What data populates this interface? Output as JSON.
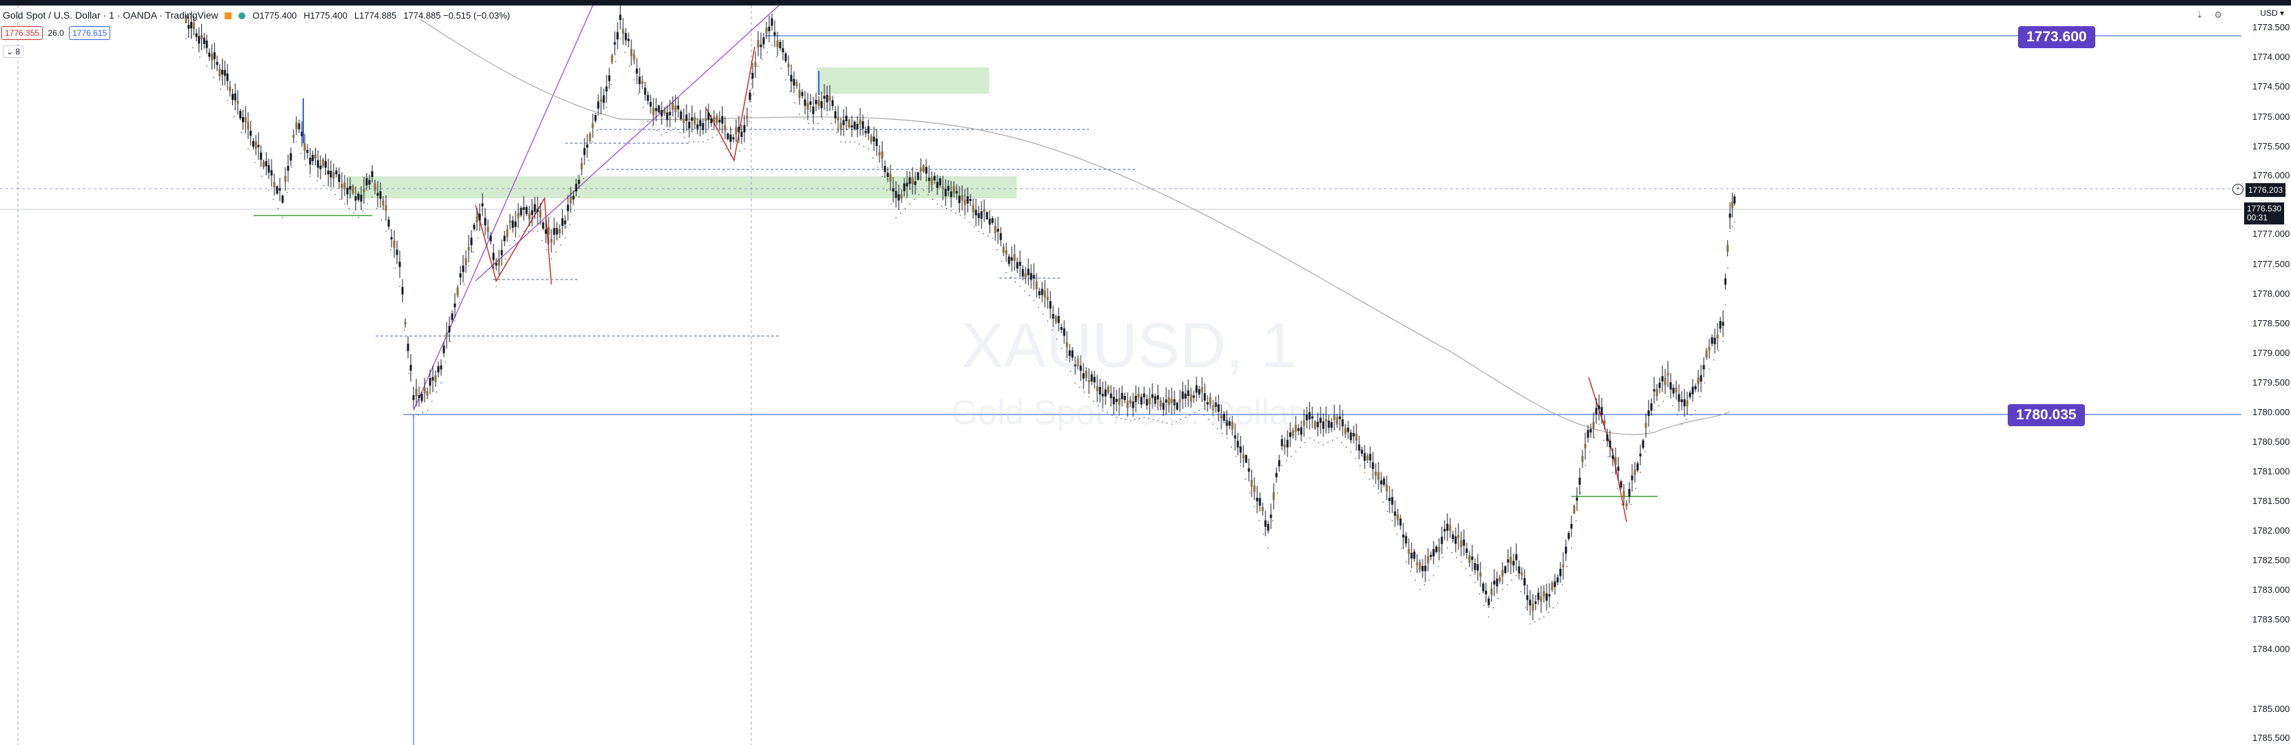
{
  "legend": {
    "symbol": "Gold Spot / U.S. Dollar · 1 · OANDA · TradingView",
    "open_label": "O1775.400",
    "high_label": "H1775.400",
    "low_label": "L1774.885",
    "close_change": "1774.885 −0.515 (−0.03%)",
    "bid": "1776.355",
    "spread": "26.0",
    "ask": "1776.615",
    "indicator_count": "8"
  },
  "watermark": {
    "title": "XAUUSD, 1",
    "subtitle": "Gold Spot / U.S. Dollar"
  },
  "labels": {
    "upper": "1773.600",
    "lower": "1780.035"
  },
  "axis": {
    "currency": "USD",
    "ticks": [
      "1773.500",
      "1774.000",
      "1774.500",
      "1775.000",
      "1775.500",
      "1776.000",
      "1777.000",
      "1777.500",
      "1778.000",
      "1778.500",
      "1779.000",
      "1779.500",
      "1780.000",
      "1780.500",
      "1781.000",
      "1781.500",
      "1782.000",
      "1782.500",
      "1783.000",
      "1783.500",
      "1784.000",
      "1785.000",
      "1785.500"
    ],
    "tag_current_price": "1776.530",
    "tag_countdown": "00:31",
    "tag_crosshair": "1776.203"
  },
  "colors": {
    "level_line": "#4a72d8",
    "label_bg": "#5b3fc4",
    "zone_fill": "#d4ecd0",
    "up_candle": "#131722",
    "down_candle": "#131722",
    "diagonal_line": "#9b3fd6",
    "red_line": "#d42a2a",
    "green_line": "#3f9e2f"
  },
  "icons": {
    "market_status": "green-dot",
    "alert": "orange-square"
  }
}
